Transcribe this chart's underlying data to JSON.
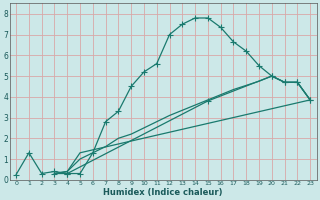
{
  "xlabel": "Humidex (Indice chaleur)",
  "xlim": [
    -0.5,
    23.5
  ],
  "ylim": [
    0,
    8.5
  ],
  "xticks": [
    0,
    1,
    2,
    3,
    4,
    5,
    6,
    7,
    8,
    9,
    10,
    11,
    12,
    13,
    14,
    15,
    16,
    17,
    18,
    19,
    20,
    21,
    22,
    23
  ],
  "yticks": [
    0,
    1,
    2,
    3,
    4,
    5,
    6,
    7,
    8
  ],
  "background_color": "#cce8e8",
  "grid_color": "#d8a8a8",
  "line_color": "#1a7a6e",
  "line1_x": [
    0,
    1,
    2,
    3,
    4,
    5,
    6,
    7,
    8,
    9,
    10,
    11,
    12,
    13,
    14,
    15,
    16,
    17,
    18,
    19,
    20,
    21,
    22,
    23
  ],
  "line1_y": [
    0.25,
    1.3,
    0.3,
    0.4,
    0.3,
    0.3,
    1.3,
    2.8,
    3.3,
    4.5,
    5.2,
    5.6,
    7.0,
    7.5,
    7.8,
    7.8,
    7.35,
    6.65,
    6.2,
    5.5,
    5.0,
    4.7,
    4.7,
    3.85
  ],
  "line2_x": [
    3,
    4,
    5,
    23
  ],
  "line2_y": [
    0.3,
    0.4,
    1.3,
    3.85
  ],
  "line3_x": [
    3,
    4,
    15,
    20,
    21,
    22,
    23
  ],
  "line3_y": [
    0.3,
    0.3,
    3.8,
    5.0,
    4.7,
    4.7,
    3.85
  ],
  "line4_x": [
    3,
    4,
    5,
    6,
    7,
    8,
    9,
    10,
    11,
    12,
    13,
    14,
    15,
    16,
    17,
    18,
    19,
    20,
    21,
    22,
    23
  ],
  "line4_y": [
    0.3,
    0.4,
    1.0,
    1.3,
    1.6,
    2.0,
    2.2,
    2.5,
    2.8,
    3.1,
    3.35,
    3.6,
    3.85,
    4.1,
    4.35,
    4.55,
    4.75,
    5.0,
    4.7,
    4.7,
    3.85
  ]
}
